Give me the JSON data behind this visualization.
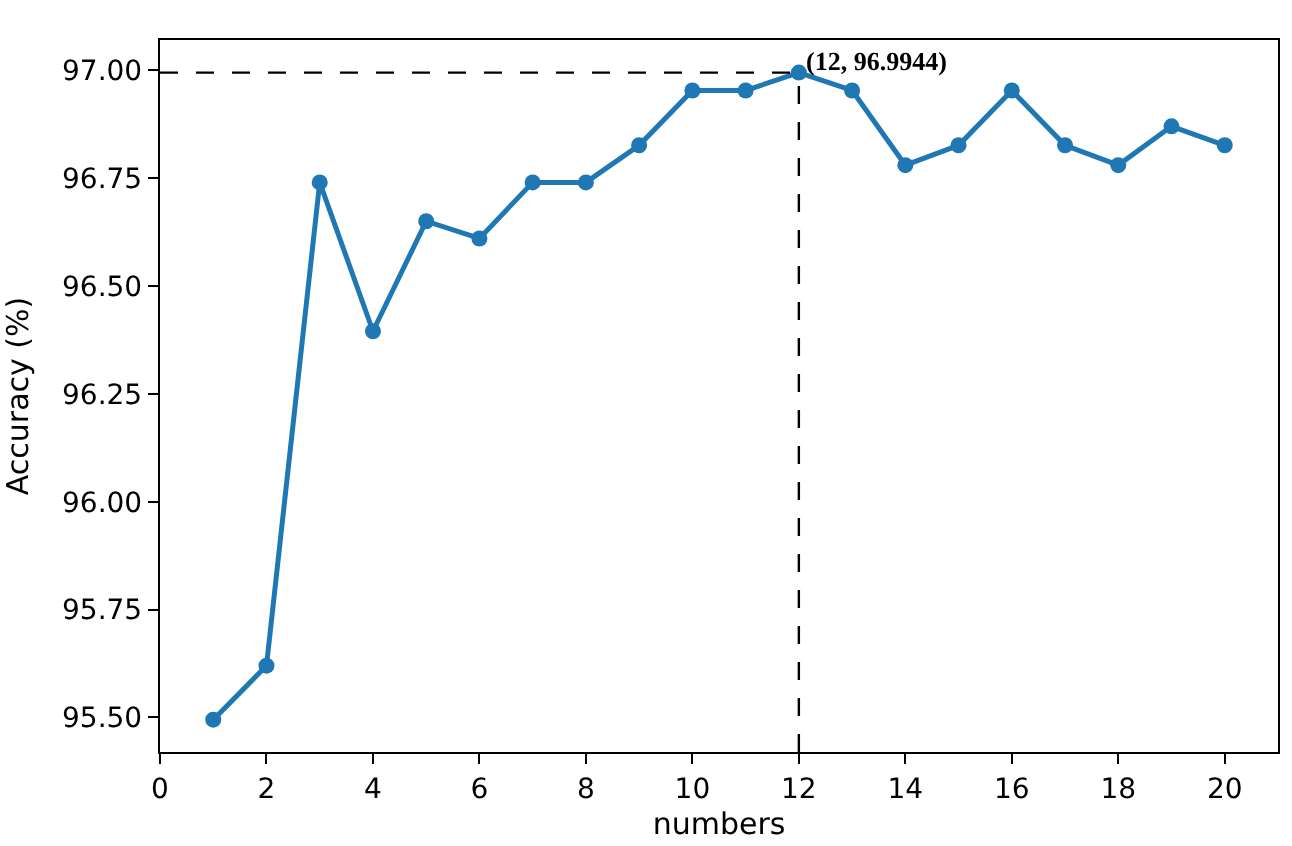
{
  "chart_data": {
    "type": "line",
    "xlabel": "numbers",
    "ylabel": "Accuracy (%)",
    "x": [
      1,
      2,
      3,
      4,
      5,
      6,
      7,
      8,
      9,
      10,
      11,
      12,
      13,
      14,
      15,
      16,
      17,
      18,
      19,
      20
    ],
    "series": [
      {
        "color": "#1f77b4",
        "values": [
          95.495,
          95.62,
          96.74,
          96.395,
          96.65,
          96.61,
          96.74,
          96.74,
          96.826,
          96.953,
          96.953,
          96.9944,
          96.953,
          96.78,
          96.826,
          96.953,
          96.826,
          96.78,
          96.87,
          96.826
        ]
      }
    ],
    "xlim": [
      0,
      21
    ],
    "xticks": [
      0,
      2,
      4,
      6,
      8,
      10,
      12,
      14,
      16,
      18,
      20
    ],
    "ylim": [
      95.42,
      97.07
    ],
    "yticks": [
      {
        "value": 95.5,
        "label": "95.50"
      },
      {
        "value": 95.75,
        "label": "95.75"
      },
      {
        "value": 96.0,
        "label": "96.00"
      },
      {
        "value": 96.25,
        "label": "96.25"
      },
      {
        "value": 96.5,
        "label": "96.50"
      },
      {
        "value": 96.75,
        "label": "96.75"
      },
      {
        "value": 97.0,
        "label": "97.00"
      }
    ],
    "ref_lines": [
      {
        "axis": "y",
        "value": 96.9944,
        "color": "#000000",
        "line_style": "dashed"
      },
      {
        "axis": "x",
        "value": 12,
        "color": "#000000",
        "line_style": "dashed"
      }
    ],
    "annotations": [
      {
        "text": "(12, 96.9944)",
        "x": 12,
        "y": 96.9944
      }
    ],
    "marker": "circle",
    "line_style": "solid"
  }
}
